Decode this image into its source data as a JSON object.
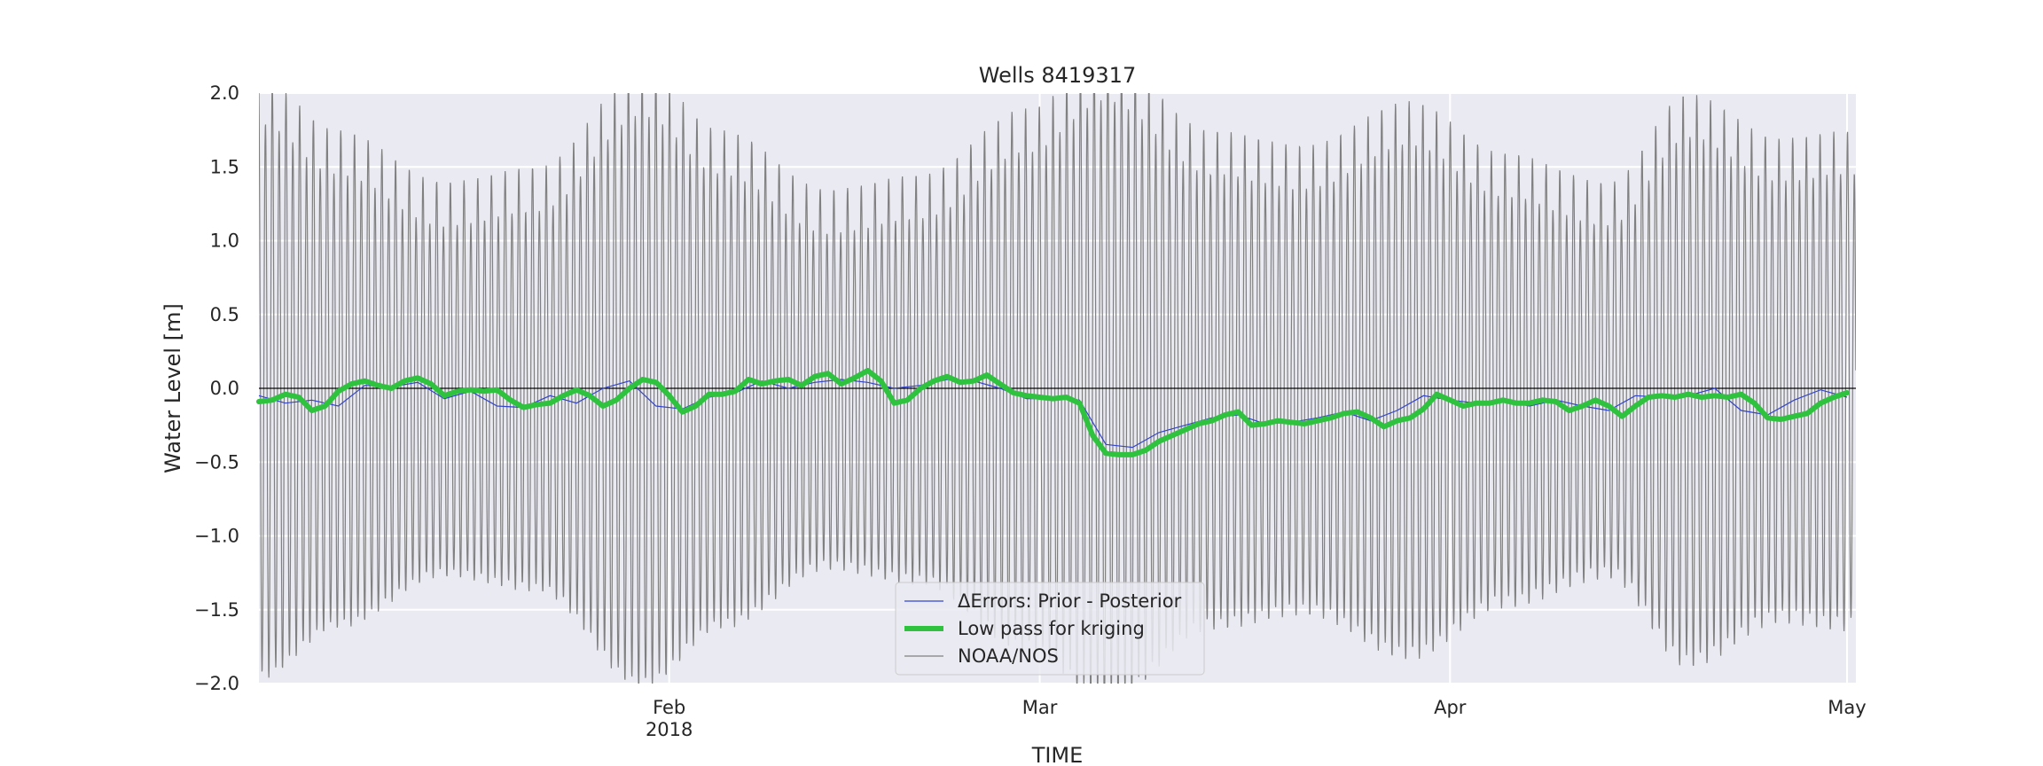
{
  "chart_data": {
    "type": "line",
    "title": "Wells  8419317",
    "xlabel": "TIME",
    "ylabel": "Water Level [m]",
    "ylim": [
      -2.0,
      2.0
    ],
    "xlim": [
      "2018-01-01",
      "2018-05-01"
    ],
    "yticks": [
      -2.0,
      -1.5,
      -1.0,
      -0.5,
      0.0,
      0.5,
      1.0,
      1.5,
      2.0
    ],
    "ytick_labels": [
      "−2.0",
      "−1.5",
      "−1.0",
      "−0.5",
      "0.0",
      "0.5",
      "1.0",
      "1.5",
      "2.0"
    ],
    "xticks": [
      {
        "date": "2018-02-01",
        "label": "Feb",
        "sublabel": "2018"
      },
      {
        "date": "2018-03-01",
        "label": "Mar",
        "sublabel": ""
      },
      {
        "date": "2018-04-01",
        "label": "Apr",
        "sublabel": ""
      },
      {
        "date": "2018-05-01",
        "label": "May",
        "sublabel": ""
      }
    ],
    "grid": true,
    "background": "#eaeaf2",
    "legend_position": "lower center",
    "series": [
      {
        "name": "ΔErrors: Prior - Posterior",
        "color": "#3344cc",
        "style": "thin",
        "x": [
          "2018-01-01",
          "2018-01-03",
          "2018-01-05",
          "2018-01-07",
          "2018-01-09",
          "2018-01-11",
          "2018-01-13",
          "2018-01-15",
          "2018-01-17",
          "2018-01-19",
          "2018-01-21",
          "2018-01-23",
          "2018-01-25",
          "2018-01-27",
          "2018-01-29",
          "2018-01-31",
          "2018-02-02",
          "2018-02-04",
          "2018-02-06",
          "2018-02-08",
          "2018-02-10",
          "2018-02-12",
          "2018-02-14",
          "2018-02-16",
          "2018-02-18",
          "2018-02-20",
          "2018-02-22",
          "2018-02-24",
          "2018-02-26",
          "2018-02-28",
          "2018-03-02",
          "2018-03-04",
          "2018-03-06",
          "2018-03-08",
          "2018-03-10",
          "2018-03-12",
          "2018-03-14",
          "2018-03-16",
          "2018-03-18",
          "2018-03-20",
          "2018-03-22",
          "2018-03-24",
          "2018-03-26",
          "2018-03-28",
          "2018-03-30",
          "2018-04-01",
          "2018-04-03",
          "2018-04-05",
          "2018-04-07",
          "2018-04-09",
          "2018-04-11",
          "2018-04-13",
          "2018-04-15",
          "2018-04-17",
          "2018-04-19",
          "2018-04-21",
          "2018-04-23",
          "2018-04-25",
          "2018-04-27",
          "2018-04-29",
          "2018-05-01"
        ],
        "y": [
          -0.05,
          -0.1,
          -0.08,
          -0.12,
          0.02,
          0.01,
          0.04,
          -0.07,
          -0.02,
          -0.12,
          -0.13,
          -0.05,
          -0.1,
          0.0,
          0.05,
          -0.12,
          -0.14,
          -0.06,
          -0.03,
          0.05,
          0.0,
          0.04,
          0.06,
          0.04,
          0.0,
          0.02,
          0.06,
          0.05,
          0.0,
          -0.07,
          -0.07,
          -0.08,
          -0.38,
          -0.4,
          -0.3,
          -0.25,
          -0.2,
          -0.18,
          -0.24,
          -0.23,
          -0.2,
          -0.16,
          -0.22,
          -0.15,
          -0.05,
          -0.08,
          -0.1,
          -0.08,
          -0.12,
          -0.08,
          -0.12,
          -0.15,
          -0.05,
          -0.06,
          -0.05,
          0.0,
          -0.15,
          -0.18,
          -0.08,
          -0.01,
          -0.06
        ]
      },
      {
        "name": "Low pass for kriging",
        "color": "#2ec23e",
        "style": "thick",
        "x": [
          "2018-01-01",
          "2018-01-02",
          "2018-01-03",
          "2018-01-04",
          "2018-01-05",
          "2018-01-06",
          "2018-01-07",
          "2018-01-08",
          "2018-01-09",
          "2018-01-10",
          "2018-01-11",
          "2018-01-12",
          "2018-01-13",
          "2018-01-14",
          "2018-01-15",
          "2018-01-16",
          "2018-01-17",
          "2018-01-18",
          "2018-01-19",
          "2018-01-20",
          "2018-01-21",
          "2018-01-22",
          "2018-01-23",
          "2018-01-24",
          "2018-01-25",
          "2018-01-26",
          "2018-01-27",
          "2018-01-28",
          "2018-01-29",
          "2018-01-30",
          "2018-01-31",
          "2018-02-01",
          "2018-02-02",
          "2018-02-03",
          "2018-02-04",
          "2018-02-05",
          "2018-02-06",
          "2018-02-07",
          "2018-02-08",
          "2018-02-09",
          "2018-02-10",
          "2018-02-11",
          "2018-02-12",
          "2018-02-13",
          "2018-02-14",
          "2018-02-15",
          "2018-02-16",
          "2018-02-17",
          "2018-02-18",
          "2018-02-19",
          "2018-02-20",
          "2018-02-21",
          "2018-02-22",
          "2018-02-23",
          "2018-02-24",
          "2018-02-25",
          "2018-02-26",
          "2018-02-27",
          "2018-02-28",
          "2018-03-01",
          "2018-03-02",
          "2018-03-03",
          "2018-03-04",
          "2018-03-05",
          "2018-03-06",
          "2018-03-07",
          "2018-03-08",
          "2018-03-09",
          "2018-03-10",
          "2018-03-11",
          "2018-03-12",
          "2018-03-13",
          "2018-03-14",
          "2018-03-15",
          "2018-03-16",
          "2018-03-17",
          "2018-03-18",
          "2018-03-19",
          "2018-03-20",
          "2018-03-21",
          "2018-03-22",
          "2018-03-23",
          "2018-03-24",
          "2018-03-25",
          "2018-03-26",
          "2018-03-27",
          "2018-03-28",
          "2018-03-29",
          "2018-03-30",
          "2018-03-31",
          "2018-04-01",
          "2018-04-02",
          "2018-04-03",
          "2018-04-04",
          "2018-04-05",
          "2018-04-06",
          "2018-04-07",
          "2018-04-08",
          "2018-04-09",
          "2018-04-10",
          "2018-04-11",
          "2018-04-12",
          "2018-04-13",
          "2018-04-14",
          "2018-04-15",
          "2018-04-16",
          "2018-04-17",
          "2018-04-18",
          "2018-04-19",
          "2018-04-20",
          "2018-04-21",
          "2018-04-22",
          "2018-04-23",
          "2018-04-24",
          "2018-04-25",
          "2018-04-26",
          "2018-04-27",
          "2018-04-28",
          "2018-04-29",
          "2018-04-30",
          "2018-05-01"
        ],
        "y": [
          -0.09,
          -0.08,
          -0.04,
          -0.06,
          -0.15,
          -0.12,
          -0.02,
          0.03,
          0.05,
          0.02,
          0.0,
          0.05,
          0.07,
          0.03,
          -0.05,
          -0.02,
          -0.01,
          -0.02,
          -0.01,
          -0.08,
          -0.13,
          -0.11,
          -0.1,
          -0.05,
          -0.01,
          -0.05,
          -0.12,
          -0.08,
          0.0,
          0.06,
          0.04,
          -0.05,
          -0.16,
          -0.12,
          -0.04,
          -0.04,
          -0.02,
          0.06,
          0.03,
          0.05,
          0.06,
          0.02,
          0.08,
          0.1,
          0.03,
          0.07,
          0.12,
          0.05,
          -0.1,
          -0.08,
          0.0,
          0.05,
          0.08,
          0.04,
          0.05,
          0.09,
          0.03,
          -0.03,
          -0.05,
          -0.06,
          -0.07,
          -0.06,
          -0.1,
          -0.32,
          -0.44,
          -0.45,
          -0.45,
          -0.42,
          -0.36,
          -0.32,
          -0.28,
          -0.24,
          -0.22,
          -0.18,
          -0.16,
          -0.25,
          -0.24,
          -0.22,
          -0.23,
          -0.24,
          -0.22,
          -0.2,
          -0.17,
          -0.16,
          -0.2,
          -0.26,
          -0.22,
          -0.2,
          -0.14,
          -0.04,
          -0.08,
          -0.12,
          -0.1,
          -0.1,
          -0.08,
          -0.1,
          -0.1,
          -0.08,
          -0.09,
          -0.15,
          -0.12,
          -0.08,
          -0.12,
          -0.19,
          -0.12,
          -0.06,
          -0.05,
          -0.06,
          -0.04,
          -0.06,
          -0.05,
          -0.06,
          -0.04,
          -0.1,
          -0.2,
          -0.21,
          -0.19,
          -0.17,
          -0.1,
          -0.06,
          -0.03
        ]
      },
      {
        "name": "NOAA/NOS",
        "color": "#808080",
        "style": "tide",
        "tide": {
          "cycles_per_day": 1.9324,
          "amplitude_note": "semidiurnal tide, amplitude about 1.2 to 2.0 m, modulated by a spring-neap cycle",
          "envelope_dates": [
            "2018-01-01",
            "2018-01-07",
            "2018-01-15",
            "2018-01-22",
            "2018-01-30",
            "2018-02-05",
            "2018-02-13",
            "2018-02-20",
            "2018-02-28",
            "2018-03-06",
            "2018-03-14",
            "2018-03-21",
            "2018-03-29",
            "2018-04-05",
            "2018-04-13",
            "2018-04-19",
            "2018-04-26",
            "2018-05-01"
          ],
          "envelope_amplitude": [
            1.95,
            1.6,
            1.25,
            1.35,
            2.0,
            1.6,
            1.2,
            1.3,
            1.75,
            2.1,
            1.6,
            1.5,
            1.8,
            1.45,
            1.25,
            1.85,
            1.55,
            1.6
          ]
        }
      }
    ],
    "baseline": {
      "y": 0.0,
      "color": "#000000"
    },
    "legend": [
      {
        "label": "ΔErrors: Prior - Posterior",
        "color": "#3344cc"
      },
      {
        "label": "Low pass for kriging",
        "color": "#2ec23e"
      },
      {
        "label": "NOAA/NOS",
        "color": "#808080"
      }
    ]
  }
}
